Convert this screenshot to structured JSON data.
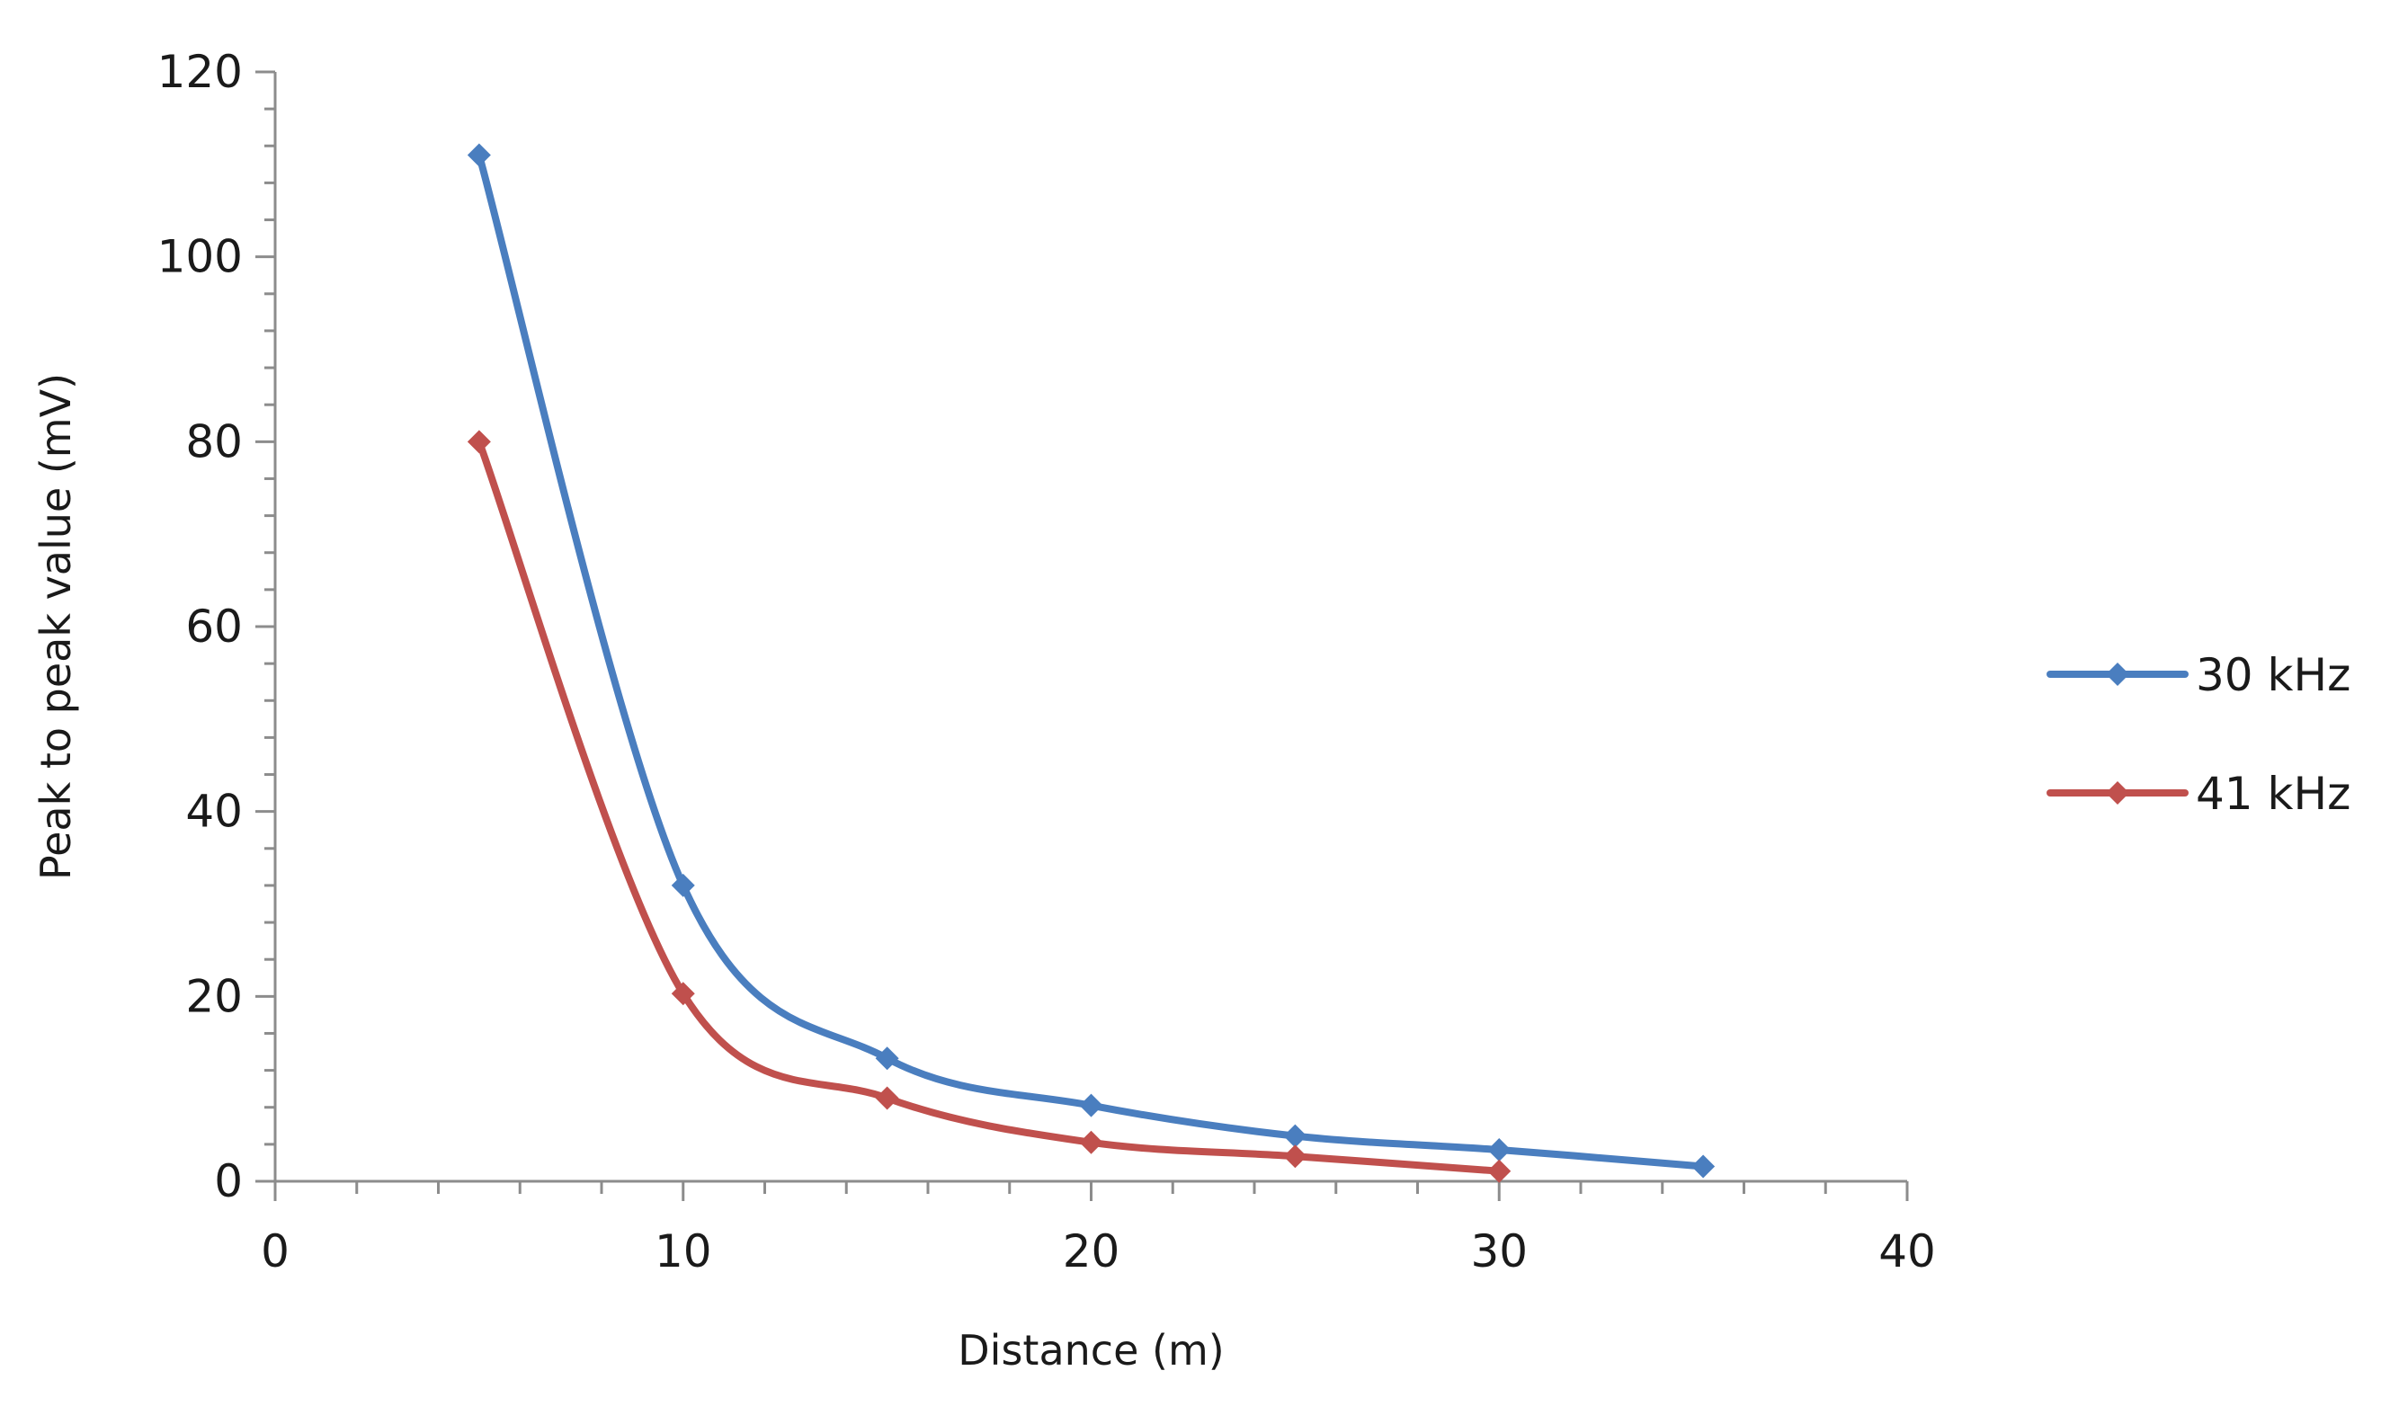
{
  "chart_data": {
    "type": "line",
    "title": "",
    "xlabel": "Distance (m)",
    "ylabel": "Peak to peak value (mV)",
    "xlim": [
      0,
      40
    ],
    "ylim": [
      0,
      120
    ],
    "x_ticks": [
      0,
      10,
      20,
      30,
      40
    ],
    "y_ticks": [
      0,
      20,
      40,
      60,
      80,
      100,
      120
    ],
    "x_tick_labels": [
      "0",
      "10",
      "20",
      "30",
      "40"
    ],
    "y_tick_labels": [
      "0",
      "20",
      "40",
      "60",
      "80",
      "100",
      "120"
    ],
    "x_minor_step": 2,
    "y_minor_step": 4,
    "grid": false,
    "legend_position": "right",
    "smooth": true,
    "series": [
      {
        "name": "30 kHz",
        "color": "#4a7ebf",
        "marker": "diamond",
        "x": [
          5,
          10,
          15,
          20,
          25,
          30,
          35
        ],
        "values": [
          111,
          32,
          13.3,
          8.2,
          4.9,
          3.4,
          1.6
        ]
      },
      {
        "name": "41 kHz",
        "color": "#c0504d",
        "marker": "diamond",
        "x": [
          5,
          10,
          15,
          20,
          25,
          30
        ],
        "values": [
          80,
          20.3,
          9,
          4.2,
          2.7,
          1.1
        ]
      }
    ]
  }
}
